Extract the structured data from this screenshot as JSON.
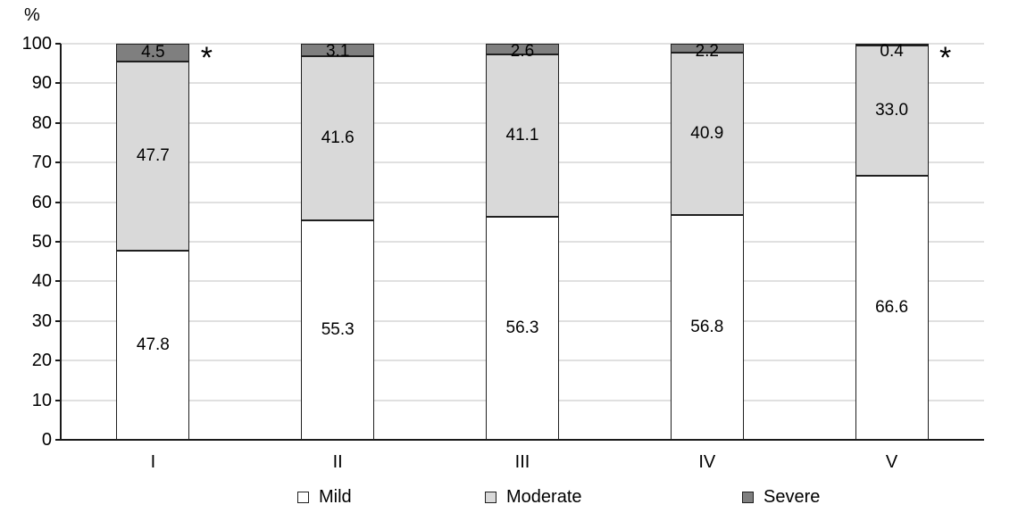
{
  "chart_data": {
    "type": "bar",
    "subtype": "stacked-percent",
    "categories": [
      "I",
      "II",
      "III",
      "IV",
      "V"
    ],
    "series": [
      {
        "name": "Mild",
        "color": "#ffffff",
        "values": [
          47.8,
          55.3,
          56.3,
          56.8,
          66.6
        ]
      },
      {
        "name": "Moderate",
        "color": "#d9d9d9",
        "values": [
          47.7,
          41.6,
          41.1,
          40.9,
          33.0
        ]
      },
      {
        "name": "Severe",
        "color": "#7f7f7f",
        "values": [
          4.5,
          3.1,
          2.6,
          2.2,
          0.4
        ]
      }
    ],
    "title": "",
    "xlabel": "",
    "ylabel": "%",
    "ylim": [
      0,
      100
    ],
    "yticks": [
      0,
      10,
      20,
      30,
      40,
      50,
      60,
      70,
      80,
      90,
      100
    ],
    "grid": true,
    "legend_position": "bottom",
    "annotations": [
      {
        "text": "*",
        "category": "I"
      },
      {
        "text": "*",
        "category": "V"
      }
    ],
    "colors": {
      "axis": "#1a1a1a",
      "gridline": "#e0e0e0",
      "bar_border": "#1f1f1f",
      "text": "#000000"
    }
  }
}
